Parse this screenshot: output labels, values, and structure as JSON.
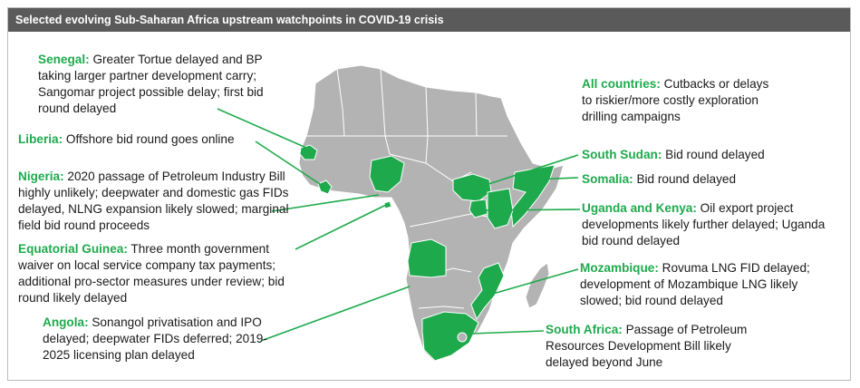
{
  "title": "Selected evolving Sub-Saharan Africa upstream watchpoints in COVID-19 crisis",
  "colors": {
    "highlight": "#1eaa4c",
    "land": "#b3b3b3",
    "border": "#ffffff",
    "header": "#5a5a5a"
  },
  "annotations": {
    "senegal": {
      "country": "Senegal:",
      "text": " Greater Tortue delayed and BP taking larger partner development carry; Sangomar project possible delay; first bid round delayed"
    },
    "liberia": {
      "country": "Liberia:",
      "text": " Offshore bid round goes online"
    },
    "nigeria": {
      "country": "Nigeria:",
      "text": " 2020 passage of Petroleum Industry Bill highly unlikely; deepwater and domestic gas FIDs delayed, NLNG expansion likely slowed; marginal field bid round proceeds"
    },
    "eq_guinea": {
      "country": "Equatorial Guinea:",
      "text": " Three month government waiver on local service company tax payments; additional pro-sector measures under review; bid round likely delayed"
    },
    "angola": {
      "country": "Angola:",
      "text": " Sonangol privatisation and IPO delayed; deepwater FIDs deferred; 2019-2025 licensing plan delayed"
    },
    "all": {
      "country": "All countries:",
      "text": " Cutbacks or delays to riskier/more costly exploration drilling campaigns"
    },
    "south_sudan": {
      "country": "South Sudan:",
      "text": " Bid round delayed"
    },
    "somalia": {
      "country": "Somalia:",
      "text": " Bid round delayed"
    },
    "uganda_kenya": {
      "country": "Uganda and Kenya:",
      "text": " Oil export project developments likely further delayed; Uganda bid round delayed"
    },
    "mozambique": {
      "country": "Mozambique:",
      "text": " Rovuma LNG FID delayed; development of Mozambique LNG likely slowed; bid round delayed"
    },
    "south_africa": {
      "country": "South Africa:",
      "text": " Passage of Petroleum Resources Development Bill likely delayed beyond June"
    }
  }
}
